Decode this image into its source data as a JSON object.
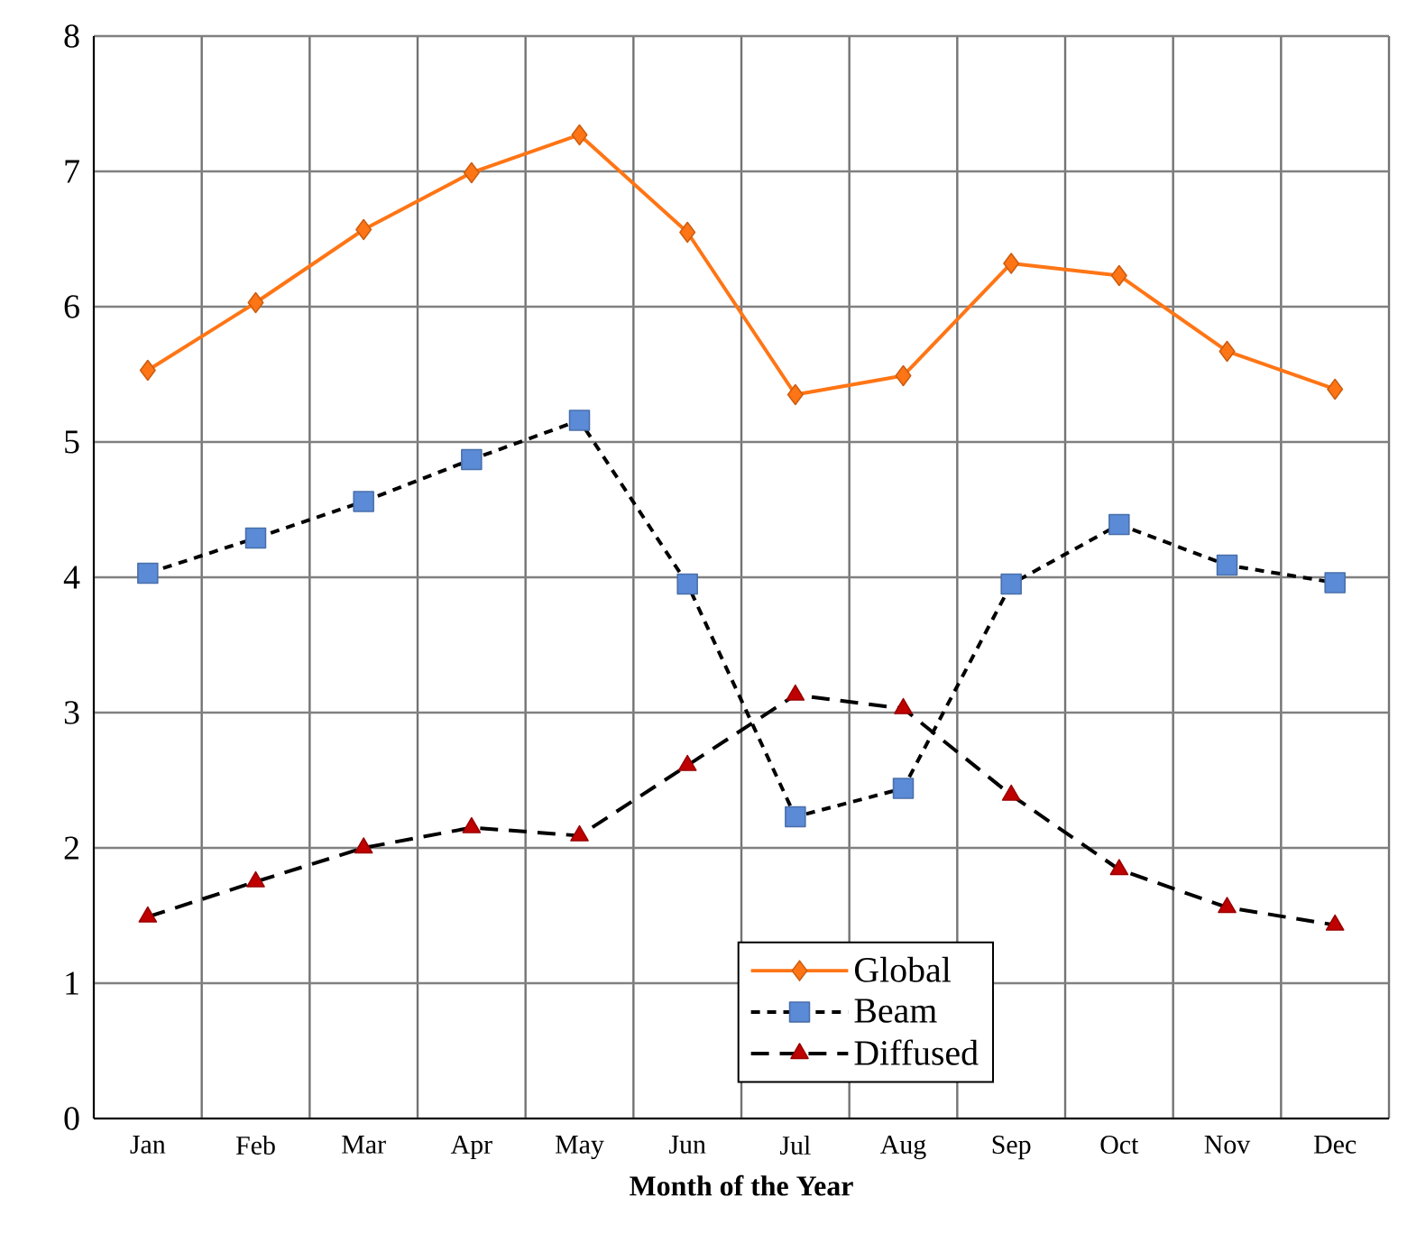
{
  "chart_data": {
    "type": "line",
    "xlabel": "Month of the Year",
    "categories": [
      "Jan",
      "Feb",
      "Mar",
      "Apr",
      "May",
      "Jun",
      "Jul",
      "Aug",
      "Sep",
      "Oct",
      "Nov",
      "Dec"
    ],
    "series": [
      {
        "name": "Global",
        "color": "#ff7515",
        "marker": "diamond",
        "line_style": "solid",
        "values": [
          5.53,
          6.03,
          6.57,
          6.99,
          7.27,
          6.55,
          5.35,
          5.49,
          6.32,
          6.23,
          5.67,
          5.39
        ]
      },
      {
        "name": "Beam",
        "color": "#5b8bd6",
        "marker": "square",
        "line_style": "dotted",
        "values": [
          4.03,
          4.29,
          4.56,
          4.87,
          5.16,
          3.95,
          2.23,
          2.44,
          3.95,
          4.39,
          4.09,
          3.96
        ]
      },
      {
        "name": "Diffused",
        "color": "#c00000",
        "marker": "triangle",
        "line_style": "dashed",
        "values": [
          1.49,
          1.75,
          2.0,
          2.15,
          2.09,
          2.61,
          3.13,
          3.03,
          2.39,
          1.84,
          1.56,
          1.43
        ]
      }
    ],
    "ylim": [
      0,
      8
    ],
    "yticks": [
      0,
      1,
      2,
      3,
      4,
      5,
      6,
      7,
      8
    ],
    "grid": true,
    "legend": "bottom"
  }
}
